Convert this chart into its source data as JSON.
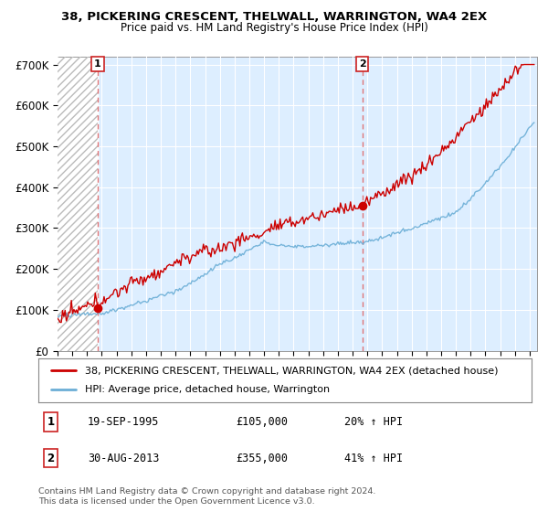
{
  "title1": "38, PICKERING CRESCENT, THELWALL, WARRINGTON, WA4 2EX",
  "title2": "Price paid vs. HM Land Registry's House Price Index (HPI)",
  "ylabel_ticks": [
    "£0",
    "£100K",
    "£200K",
    "£300K",
    "£400K",
    "£500K",
    "£600K",
    "£700K"
  ],
  "ytick_values": [
    0,
    100000,
    200000,
    300000,
    400000,
    500000,
    600000,
    700000
  ],
  "ylim": [
    0,
    720000
  ],
  "xlim_start": 1993.0,
  "xlim_end": 2025.5,
  "sale1_year": 1995.72,
  "sale1_price": 105000,
  "sale1_label": "1",
  "sale2_year": 2013.66,
  "sale2_price": 355000,
  "sale2_label": "2",
  "hpi_color": "#6baed6",
  "price_color": "#cc0000",
  "dashed_color": "#e06060",
  "bg_fill_color": "#ddeeff",
  "legend_label1": "38, PICKERING CRESCENT, THELWALL, WARRINGTON, WA4 2EX (detached house)",
  "legend_label2": "HPI: Average price, detached house, Warrington",
  "footnote": "Contains HM Land Registry data © Crown copyright and database right 2024.\nThis data is licensed under the Open Government Licence v3.0.",
  "table_rows": [
    {
      "num": "1",
      "date": "19-SEP-1995",
      "price": "£105,000",
      "pct": "20% ↑ HPI"
    },
    {
      "num": "2",
      "date": "30-AUG-2013",
      "price": "£355,000",
      "pct": "41% ↑ HPI"
    }
  ],
  "xtick_years": [
    1993,
    1994,
    1995,
    1996,
    1997,
    1998,
    1999,
    2000,
    2001,
    2002,
    2003,
    2004,
    2005,
    2006,
    2007,
    2008,
    2009,
    2010,
    2011,
    2012,
    2013,
    2014,
    2015,
    2016,
    2017,
    2018,
    2019,
    2020,
    2021,
    2022,
    2023,
    2024,
    2025
  ]
}
